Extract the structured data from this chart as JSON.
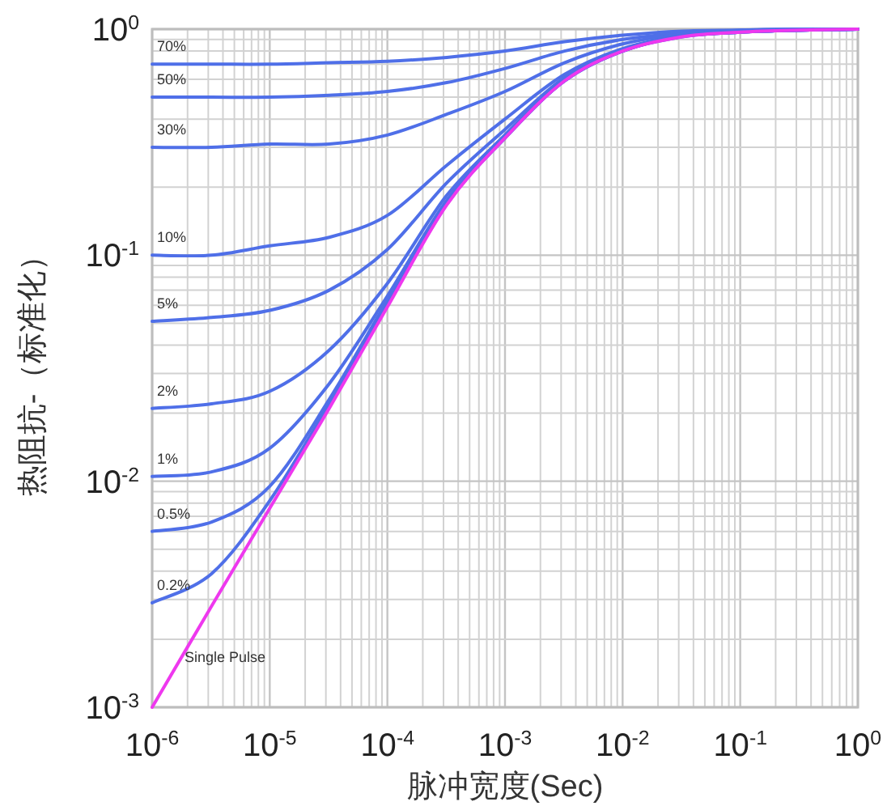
{
  "chart_data": {
    "type": "line",
    "xlabel": "脉冲宽度(Sec)",
    "ylabel": "热阻抗-（标准化）",
    "log": "xy",
    "grid": true,
    "xlim": [
      1e-06,
      1
    ],
    "ylim": [
      0.001,
      1
    ],
    "xticks": [
      {
        "value": 1e-06,
        "label": "10$^{-6}$"
      },
      {
        "value": 1e-05,
        "label": "10$^{-5}$"
      },
      {
        "value": 0.0001,
        "label": "10$^{-4}$"
      },
      {
        "value": 0.001,
        "label": "10$^{-3}$"
      },
      {
        "value": 0.01,
        "label": "10$^{-2}$"
      },
      {
        "value": 0.1,
        "label": "10$^{-1}$"
      },
      {
        "value": 1,
        "label": "10$^{0}$"
      }
    ],
    "yticks": [
      {
        "value": 0.001,
        "label": "10$^{-3}$"
      },
      {
        "value": 0.01,
        "label": "10$^{-2}$"
      },
      {
        "value": 0.1,
        "label": "10$^{-1}$"
      },
      {
        "value": 1,
        "label": "10$^{0}$"
      }
    ],
    "x": [
      1e-06,
      3.2e-06,
      1e-05,
      3.2e-05,
      0.0001,
      0.00032,
      0.001,
      0.0032,
      0.01,
      0.032,
      0.1,
      0.32,
      1
    ],
    "series": [
      {
        "name": "70%",
        "color": "#4f6fe8",
        "values": [
          0.7,
          0.7,
          0.7,
          0.71,
          0.72,
          0.75,
          0.8,
          0.88,
          0.94,
          0.98,
          0.99,
          1.0,
          1.0
        ]
      },
      {
        "name": "50%",
        "color": "#4f6fe8",
        "values": [
          0.5,
          0.5,
          0.5,
          0.51,
          0.53,
          0.58,
          0.67,
          0.8,
          0.9,
          0.96,
          0.99,
          1.0,
          1.0
        ]
      },
      {
        "name": "30%",
        "color": "#4f6fe8",
        "values": [
          0.3,
          0.3,
          0.31,
          0.31,
          0.34,
          0.42,
          0.53,
          0.71,
          0.86,
          0.95,
          0.98,
          0.99,
          1.0
        ]
      },
      {
        "name": "10%",
        "color": "#4f6fe8",
        "values": [
          0.1,
          0.1,
          0.11,
          0.12,
          0.15,
          0.25,
          0.4,
          0.63,
          0.82,
          0.93,
          0.97,
          0.99,
          1.0
        ]
      },
      {
        "name": "5%",
        "color": "#4f6fe8",
        "values": [
          0.051,
          0.053,
          0.057,
          0.07,
          0.106,
          0.209,
          0.36,
          0.61,
          0.81,
          0.93,
          0.97,
          0.99,
          1.0
        ]
      },
      {
        "name": "2%",
        "color": "#4f6fe8",
        "values": [
          0.021,
          0.022,
          0.025,
          0.038,
          0.075,
          0.184,
          0.34,
          0.6,
          0.8,
          0.93,
          0.97,
          0.99,
          1.0
        ]
      },
      {
        "name": "1%",
        "color": "#4f6fe8",
        "values": [
          0.0105,
          0.011,
          0.014,
          0.027,
          0.066,
          0.175,
          0.34,
          0.59,
          0.8,
          0.93,
          0.97,
          0.99,
          1.0
        ]
      },
      {
        "name": "0.5%",
        "color": "#4f6fe8",
        "values": [
          0.006,
          0.0066,
          0.0095,
          0.023,
          0.063,
          0.171,
          0.33,
          0.59,
          0.8,
          0.93,
          0.97,
          0.99,
          1.0
        ]
      },
      {
        "name": "0.2%",
        "color": "#4f6fe8",
        "values": [
          0.0029,
          0.0039,
          0.0082,
          0.022,
          0.06,
          0.168,
          0.33,
          0.59,
          0.8,
          0.925,
          0.97,
          0.99,
          1.0
        ]
      },
      {
        "name": "Single Pulse",
        "color": "#ee38ee",
        "values": [
          0.001,
          0.0028,
          0.0076,
          0.021,
          0.059,
          0.167,
          0.33,
          0.59,
          0.8,
          0.925,
          0.97,
          0.99,
          1.0
        ]
      }
    ]
  }
}
